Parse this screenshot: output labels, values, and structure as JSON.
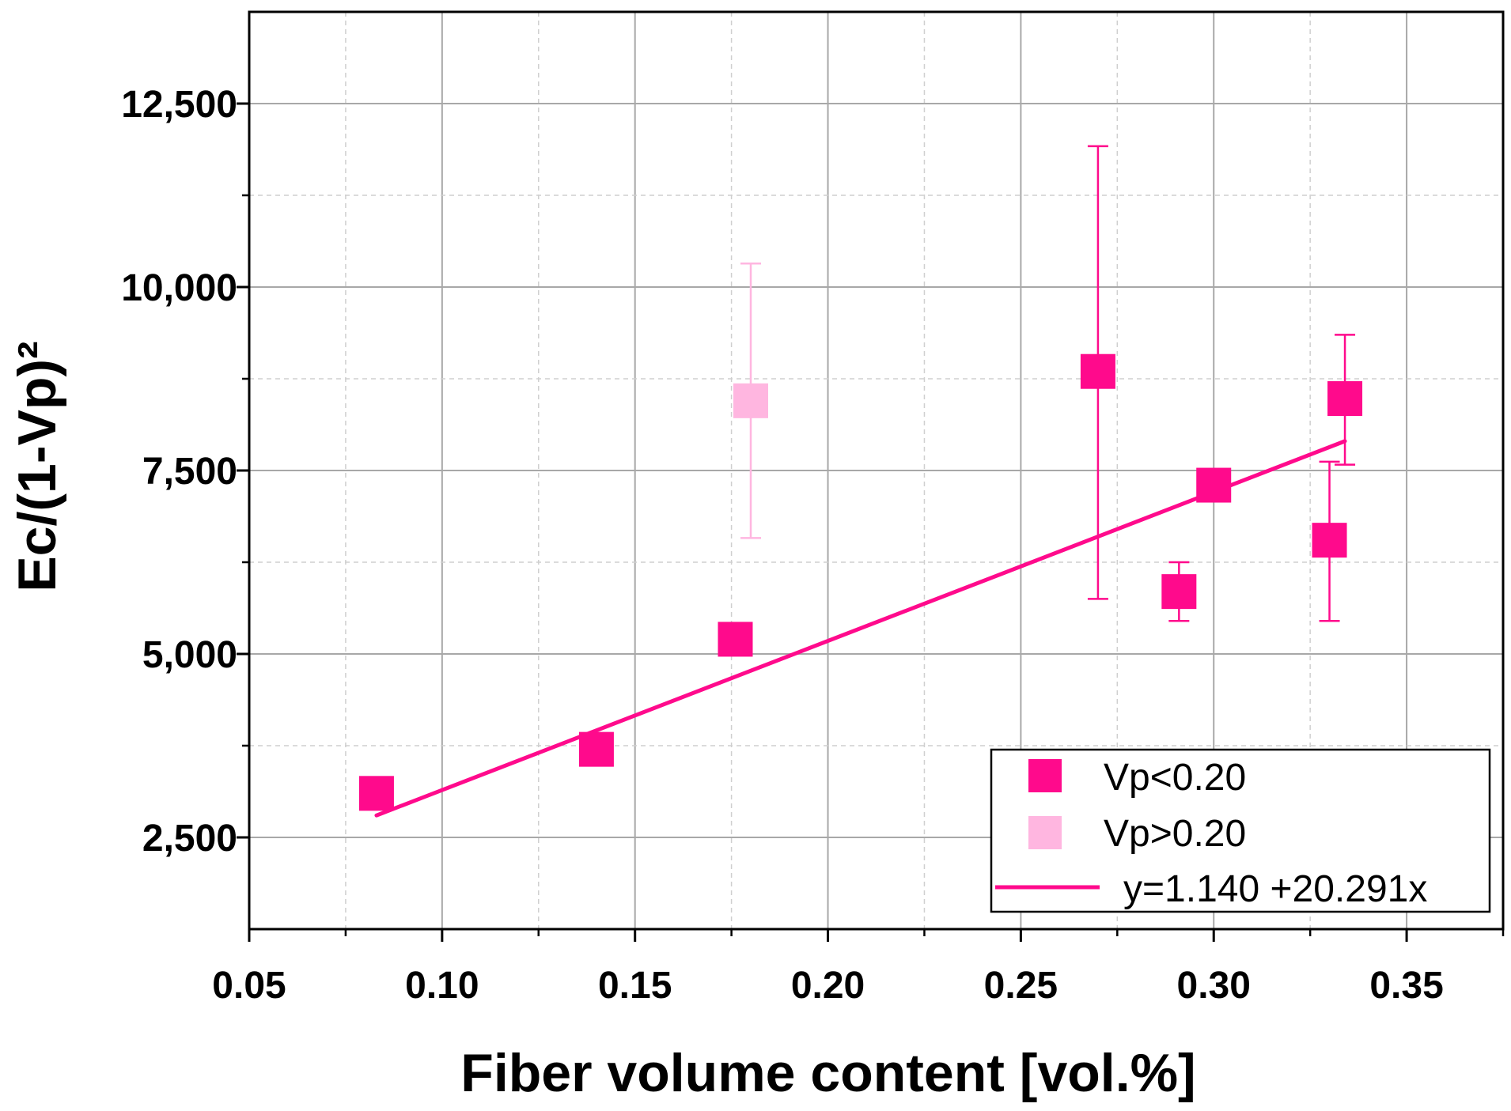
{
  "chart_data": {
    "type": "scatter",
    "title": "",
    "xlabel": "Fiber volume content [vol.%]",
    "ylabel": "Ec/(1-Vp)²",
    "xlim": [
      0.05,
      0.375
    ],
    "ylim": [
      1250,
      13750
    ],
    "x_ticks": [
      0.05,
      0.1,
      0.15,
      0.2,
      0.25,
      0.3,
      0.35
    ],
    "x_tick_labels": [
      "0.05",
      "0.10",
      "0.15",
      "0.20",
      "0.25",
      "0.30",
      "0.35"
    ],
    "y_ticks": [
      2500,
      5000,
      7500,
      10000,
      12500
    ],
    "y_tick_labels": [
      "2,500",
      "5,000",
      "7,500",
      "10,000",
      "12,500"
    ],
    "grid": true,
    "legend_position": "bottom-right",
    "series": [
      {
        "name": "Vp<0.20",
        "color": "#ff0a8c",
        "marker": "square",
        "points": [
          {
            "x": 0.083,
            "y": 3100,
            "err": null
          },
          {
            "x": 0.14,
            "y": 3700,
            "err": null
          },
          {
            "x": 0.176,
            "y": 5200,
            "err": null
          },
          {
            "x": 0.27,
            "y": 8850,
            "err": [
              5750,
              11920
            ]
          },
          {
            "x": 0.291,
            "y": 5850,
            "err": [
              5450,
              6250
            ]
          },
          {
            "x": 0.3,
            "y": 7300,
            "err": null
          },
          {
            "x": 0.33,
            "y": 6550,
            "err": [
              5450,
              7620
            ]
          },
          {
            "x": 0.334,
            "y": 8480,
            "err": [
              7580,
              9350
            ]
          }
        ]
      },
      {
        "name": "Vp>0.20",
        "color": "#ffb6e0",
        "marker": "square",
        "points": [
          {
            "x": 0.18,
            "y": 8450,
            "err": [
              6580,
              10320
            ]
          }
        ]
      }
    ],
    "fit": {
      "name": "y=1.140 +20.291x",
      "color": "#ff0a8c",
      "x_range": [
        0.083,
        0.334
      ],
      "y_range": [
        2800,
        7900
      ]
    }
  }
}
